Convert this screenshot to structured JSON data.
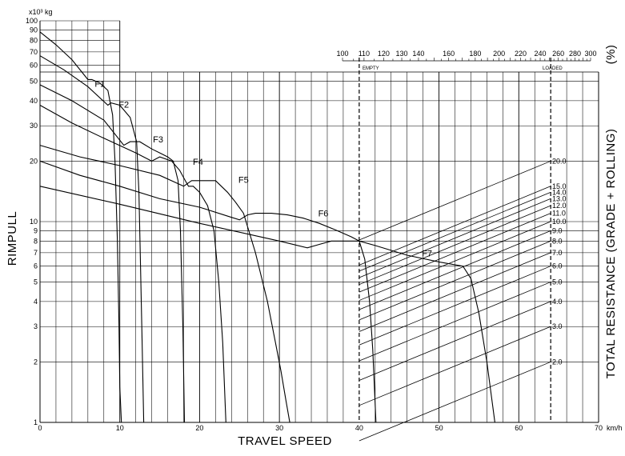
{
  "chart_data": {
    "type": "line",
    "title": "",
    "y_unit_label": "x10³ kg",
    "ylabel": "RIMPULL",
    "xlabel": "TRAVEL SPEED",
    "x_unit": "km/h",
    "right_label": "TOTAL RESISTANCE (GRADE + ROLLING)",
    "right_unit": "(%)",
    "y_scale": "log",
    "xlim": [
      0,
      70
    ],
    "ylim": [
      1,
      100
    ],
    "grid": true,
    "x_tick_labels": [
      "0",
      "10",
      "20",
      "30",
      "40",
      "50",
      "60",
      "70"
    ],
    "y_tick_labels": [
      "1",
      "2",
      "3",
      "4",
      "5",
      "6",
      "7",
      "8",
      "9",
      "10",
      "20",
      "30",
      "40",
      "50",
      "60",
      "70",
      "80",
      "90",
      "100"
    ],
    "gvw_scale": {
      "labels": [
        "100",
        "110",
        "120",
        "130",
        "140",
        "160",
        "180",
        "200",
        "220",
        "240",
        "260",
        "280",
        "300"
      ],
      "empty_label": "EMPTY",
      "loaded_label": "LOADED"
    },
    "resistance_labels": [
      "20.0",
      "15.0",
      "14.0",
      "13.0",
      "12.0",
      "11.0",
      "10.0",
      "9.0",
      "8.0",
      "7.0",
      "6.0",
      "5.0",
      "4.0",
      "3.0",
      "2.0"
    ],
    "series": [
      {
        "name": "F1",
        "x": [
          0,
          2,
          4,
          6,
          6.5,
          7.5,
          8.5,
          9.1,
          9.4,
          9.7,
          9.9,
          10.0,
          10.2
        ],
        "y": [
          88,
          76,
          64,
          51,
          51,
          49,
          45,
          34,
          20,
          8,
          3,
          1.5,
          1
        ]
      },
      {
        "name": "F2",
        "x": [
          0,
          3,
          6,
          8.5,
          8.9,
          10,
          11.3,
          12.1,
          12.4,
          12.6,
          12.8,
          13.0
        ],
        "y": [
          67,
          57,
          47,
          38,
          39,
          38,
          33,
          25,
          14,
          6,
          2.5,
          1
        ]
      },
      {
        "name": "F3",
        "x": [
          0,
          4,
          8,
          10.5,
          11.3,
          12.5,
          14,
          15,
          16,
          16.7,
          17.3,
          17.6,
          17.9,
          18.1
        ],
        "y": [
          48,
          40,
          32,
          24,
          25,
          25,
          23,
          22,
          21,
          20,
          16,
          9,
          3,
          1
        ]
      },
      {
        "name": "F4",
        "x": [
          0,
          4,
          8,
          12,
          14,
          15,
          16.5,
          17.5,
          18.2,
          18.6,
          19.2,
          20,
          21,
          21.8,
          22.4,
          22.9,
          23.3
        ],
        "y": [
          38,
          31,
          26,
          22,
          20,
          21,
          20,
          18,
          16,
          15,
          15,
          14,
          12,
          9,
          5,
          2.5,
          1
        ]
      },
      {
        "name": "F5",
        "x": [
          0,
          5,
          10,
          15,
          18,
          19,
          20,
          22,
          23.5,
          24.5,
          25.5,
          27,
          28.5,
          29.5,
          30.2,
          30.8,
          31.3
        ],
        "y": [
          24,
          21,
          19,
          17,
          15,
          16,
          16,
          16,
          14,
          12.5,
          11,
          7,
          4,
          2.5,
          1.8,
          1.3,
          1
        ]
      },
      {
        "name": "F6",
        "x": [
          0,
          5,
          10,
          15,
          20,
          24,
          25,
          26,
          27,
          29,
          31,
          33,
          35,
          37,
          39,
          40,
          40.7,
          41.3,
          41.7,
          42.1
        ],
        "y": [
          20,
          17,
          15,
          13,
          11.8,
          10.5,
          10.2,
          10.8,
          11,
          11,
          10.8,
          10.4,
          9.8,
          9.1,
          8.4,
          8.0,
          6.5,
          4.0,
          2.3,
          1
        ]
      },
      {
        "name": "F7",
        "x": [
          0,
          10,
          20,
          30,
          33.5,
          35,
          36.5,
          40,
          42,
          46,
          50,
          53,
          54,
          55,
          56,
          57
        ],
        "y": [
          15,
          12.2,
          9.8,
          8.0,
          7.4,
          7.7,
          8.0,
          8.0,
          7.6,
          6.8,
          6.3,
          6.0,
          5.2,
          3.5,
          2.0,
          1
        ]
      }
    ]
  }
}
